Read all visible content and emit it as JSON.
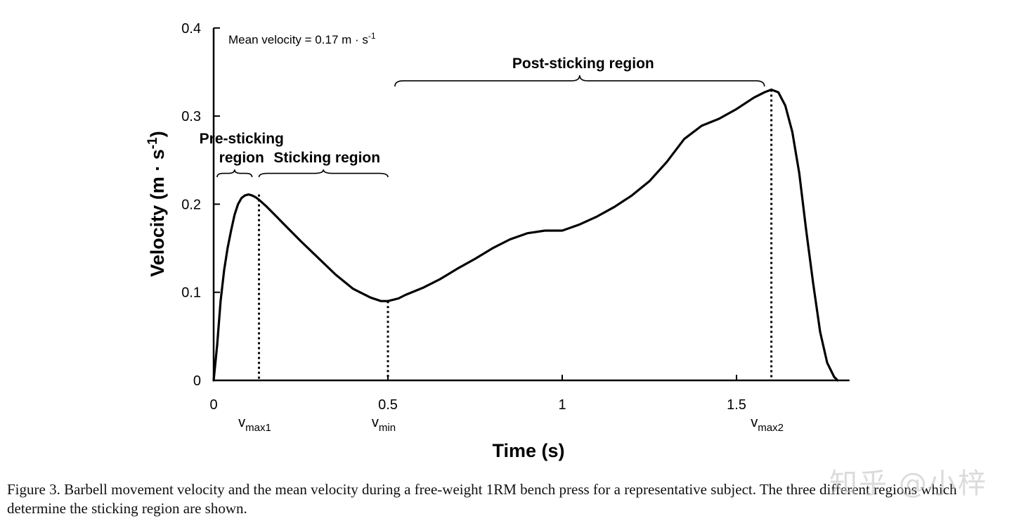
{
  "chart_data": {
    "type": "line",
    "xlabel": "Time (s)",
    "ylabel_base": "Velocity (m · s",
    "ylabel_sup": "-1",
    "ylabel_end": ")",
    "xlim": [
      0,
      1.8
    ],
    "ylim": [
      0,
      0.4
    ],
    "xticks": [
      0,
      0.5,
      1,
      1.5
    ],
    "xtick_labels": [
      "0",
      "0.5",
      "1",
      "1.5"
    ],
    "yticks": [
      0,
      0.1,
      0.2,
      0.3,
      0.4
    ],
    "ytick_labels": [
      "0",
      "0.1",
      "0.2",
      "0.3",
      "0.4"
    ],
    "grid": false,
    "line_color": "#000000",
    "series": [
      {
        "x": [
          0,
          0.01,
          0.02,
          0.03,
          0.04,
          0.05,
          0.06,
          0.07,
          0.08,
          0.09,
          0.1,
          0.11,
          0.12,
          0.13,
          0.15,
          0.18,
          0.2,
          0.25,
          0.3,
          0.35,
          0.4,
          0.45,
          0.48,
          0.5,
          0.53,
          0.55,
          0.6,
          0.65,
          0.7,
          0.75,
          0.8,
          0.85,
          0.9,
          0.95,
          1.0,
          1.05,
          1.1,
          1.15,
          1.2,
          1.25,
          1.3,
          1.35,
          1.4,
          1.45,
          1.5,
          1.55,
          1.58,
          1.6,
          1.62,
          1.64,
          1.66,
          1.68,
          1.7,
          1.72,
          1.74,
          1.76,
          1.78,
          1.79
        ],
        "y": [
          0,
          0.04,
          0.09,
          0.125,
          0.15,
          0.17,
          0.188,
          0.2,
          0.207,
          0.21,
          0.211,
          0.21,
          0.208,
          0.205,
          0.198,
          0.186,
          0.178,
          0.158,
          0.139,
          0.12,
          0.104,
          0.094,
          0.09,
          0.09,
          0.093,
          0.097,
          0.105,
          0.115,
          0.127,
          0.138,
          0.15,
          0.16,
          0.167,
          0.17,
          0.17,
          0.177,
          0.186,
          0.197,
          0.21,
          0.226,
          0.248,
          0.274,
          0.289,
          0.297,
          0.308,
          0.321,
          0.327,
          0.33,
          0.327,
          0.312,
          0.282,
          0.235,
          0.17,
          0.11,
          0.055,
          0.02,
          0.004,
          0
        ]
      }
    ],
    "markers": [
      {
        "x": 0.13,
        "y": 0.211,
        "label_main": "v",
        "label_sub": "max1"
      },
      {
        "x": 0.5,
        "y": 0.09,
        "label_main": "v",
        "label_sub": "min"
      },
      {
        "x": 1.6,
        "y": 0.33,
        "label_main": "v",
        "label_sub": "max2"
      }
    ],
    "regions": [
      {
        "x_start": 0.01,
        "x_end": 0.11,
        "y": 0.235,
        "label_lines": [
          "Pre-sticking",
          "region"
        ]
      },
      {
        "x_start": 0.13,
        "x_end": 0.5,
        "y": 0.235,
        "label_lines": [
          "Sticking region"
        ]
      },
      {
        "x_start": 0.52,
        "x_end": 1.58,
        "y": 0.34,
        "label_lines": [
          "Post-sticking region"
        ]
      }
    ],
    "annotation": "Mean velocity = 0.17 m · s",
    "annotation_sup": "-1"
  },
  "caption": "Figure 3. Barbell movement velocity and the mean velocity during a free-weight 1RM bench press for a representative subject. The three different regions which determine the sticking region are shown.",
  "watermark": "知乎 @小梓"
}
